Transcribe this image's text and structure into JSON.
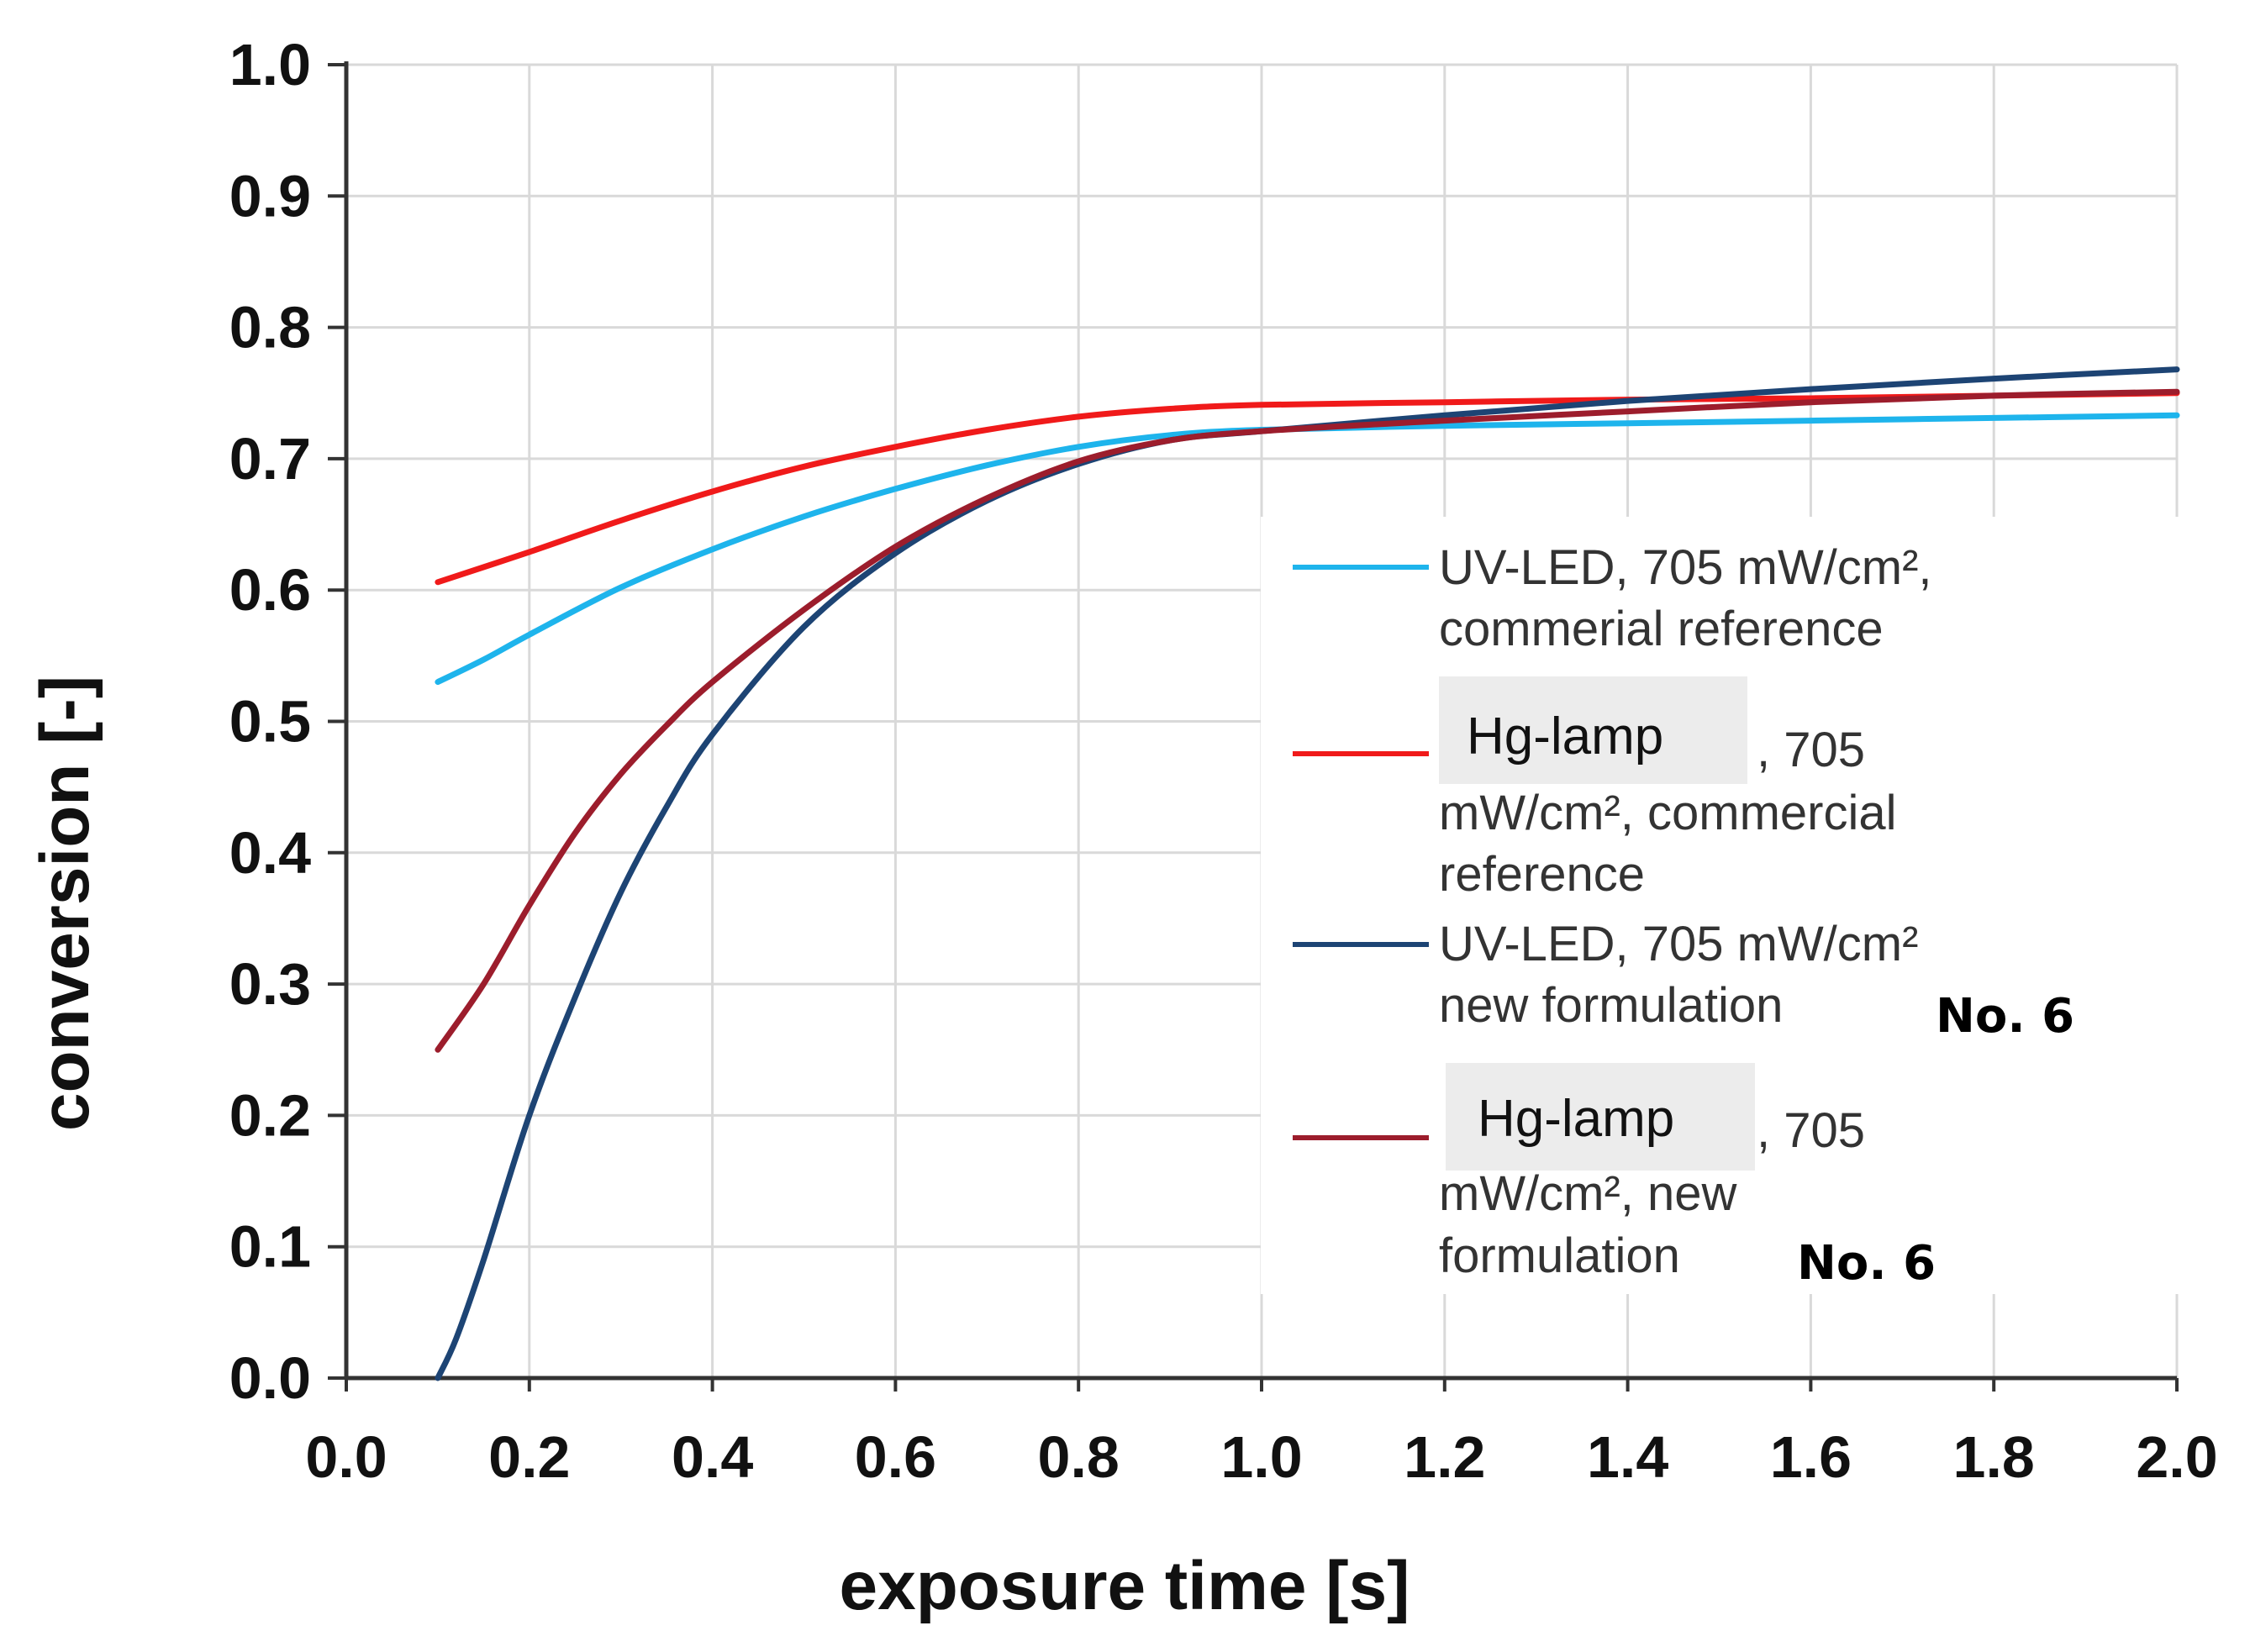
{
  "chart_data": {
    "type": "line",
    "xlabel": "exposure time [s]",
    "ylabel": "conversion [-]",
    "xlim": [
      0.0,
      2.0
    ],
    "ylim": [
      0.0,
      1.0
    ],
    "x_tick_labels": [
      "0.0",
      "0.2",
      "0.4",
      "0.6",
      "0.8",
      "1.0",
      "1.2",
      "1.4",
      "1.6",
      "1.8",
      "2.0"
    ],
    "y_tick_labels": [
      "0.0",
      "0.1",
      "0.2",
      "0.3",
      "0.4",
      "0.5",
      "0.6",
      "0.7",
      "0.8",
      "0.9",
      "1.0"
    ],
    "grid": true,
    "legend_position": "center-right",
    "series": [
      {
        "name": "UV-LED, 705 mW/cm², commerial reference",
        "color": "#1eb4ec",
        "x": [
          0.1,
          0.15,
          0.2,
          0.3,
          0.4,
          0.5,
          0.6,
          0.7,
          0.8,
          0.9,
          1.0,
          1.2,
          1.4,
          1.6,
          1.8,
          2.0
        ],
        "y": [
          0.53,
          0.547,
          0.566,
          0.602,
          0.631,
          0.656,
          0.677,
          0.695,
          0.709,
          0.718,
          0.722,
          0.725,
          0.727,
          0.729,
          0.731,
          0.733
        ]
      },
      {
        "name": "Hg-lamp, 705 mW/cm², commercial reference",
        "color": "#f01a1a",
        "x": [
          0.1,
          0.2,
          0.3,
          0.4,
          0.5,
          0.6,
          0.7,
          0.8,
          0.9,
          1.0,
          1.2,
          1.4,
          1.6,
          1.8,
          2.0
        ],
        "y": [
          0.606,
          0.629,
          0.653,
          0.675,
          0.694,
          0.709,
          0.722,
          0.732,
          0.738,
          0.741,
          0.743,
          0.745,
          0.746,
          0.748,
          0.75
        ]
      },
      {
        "name": "UV-LED, 705 mW/cm² new formulation No. 6",
        "color": "#1d4474",
        "x": [
          0.1,
          0.12,
          0.15,
          0.2,
          0.25,
          0.3,
          0.35,
          0.4,
          0.5,
          0.6,
          0.7,
          0.8,
          0.9,
          1.0,
          1.2,
          1.4,
          1.6,
          1.8,
          2.0
        ],
        "y": [
          0.0,
          0.03,
          0.09,
          0.2,
          0.29,
          0.37,
          0.435,
          0.49,
          0.572,
          0.628,
          0.668,
          0.696,
          0.714,
          0.721,
          0.733,
          0.744,
          0.753,
          0.761,
          0.768
        ]
      },
      {
        "name": "Hg-lamp, 705 mW/cm², new formulation No. 6",
        "color": "#9c1d2c",
        "x": [
          0.1,
          0.15,
          0.2,
          0.25,
          0.3,
          0.35,
          0.4,
          0.5,
          0.6,
          0.7,
          0.8,
          0.9,
          1.0,
          1.2,
          1.4,
          1.6,
          1.8,
          2.0
        ],
        "y": [
          0.25,
          0.3,
          0.36,
          0.415,
          0.46,
          0.497,
          0.53,
          0.585,
          0.633,
          0.67,
          0.698,
          0.714,
          0.721,
          0.729,
          0.736,
          0.743,
          0.748,
          0.751
        ]
      }
    ],
    "legend": [
      {
        "lines": [
          "UV-LED, 705 mW/cm², ",
          "commerial reference"
        ],
        "bold": ""
      },
      {
        "patch": "Hg-lamp",
        "lines": [
          ", 705",
          "mW/cm², commercial",
          "reference"
        ],
        "bold": ""
      },
      {
        "lines": [
          "UV-LED, 705 mW/cm²",
          "new formulation "
        ],
        "bold": "No. 6"
      },
      {
        "patch": "Hg-lamp",
        "lines": [
          ", 705",
          "mW/cm², new",
          "formulation "
        ],
        "bold": "No. 6"
      }
    ]
  }
}
